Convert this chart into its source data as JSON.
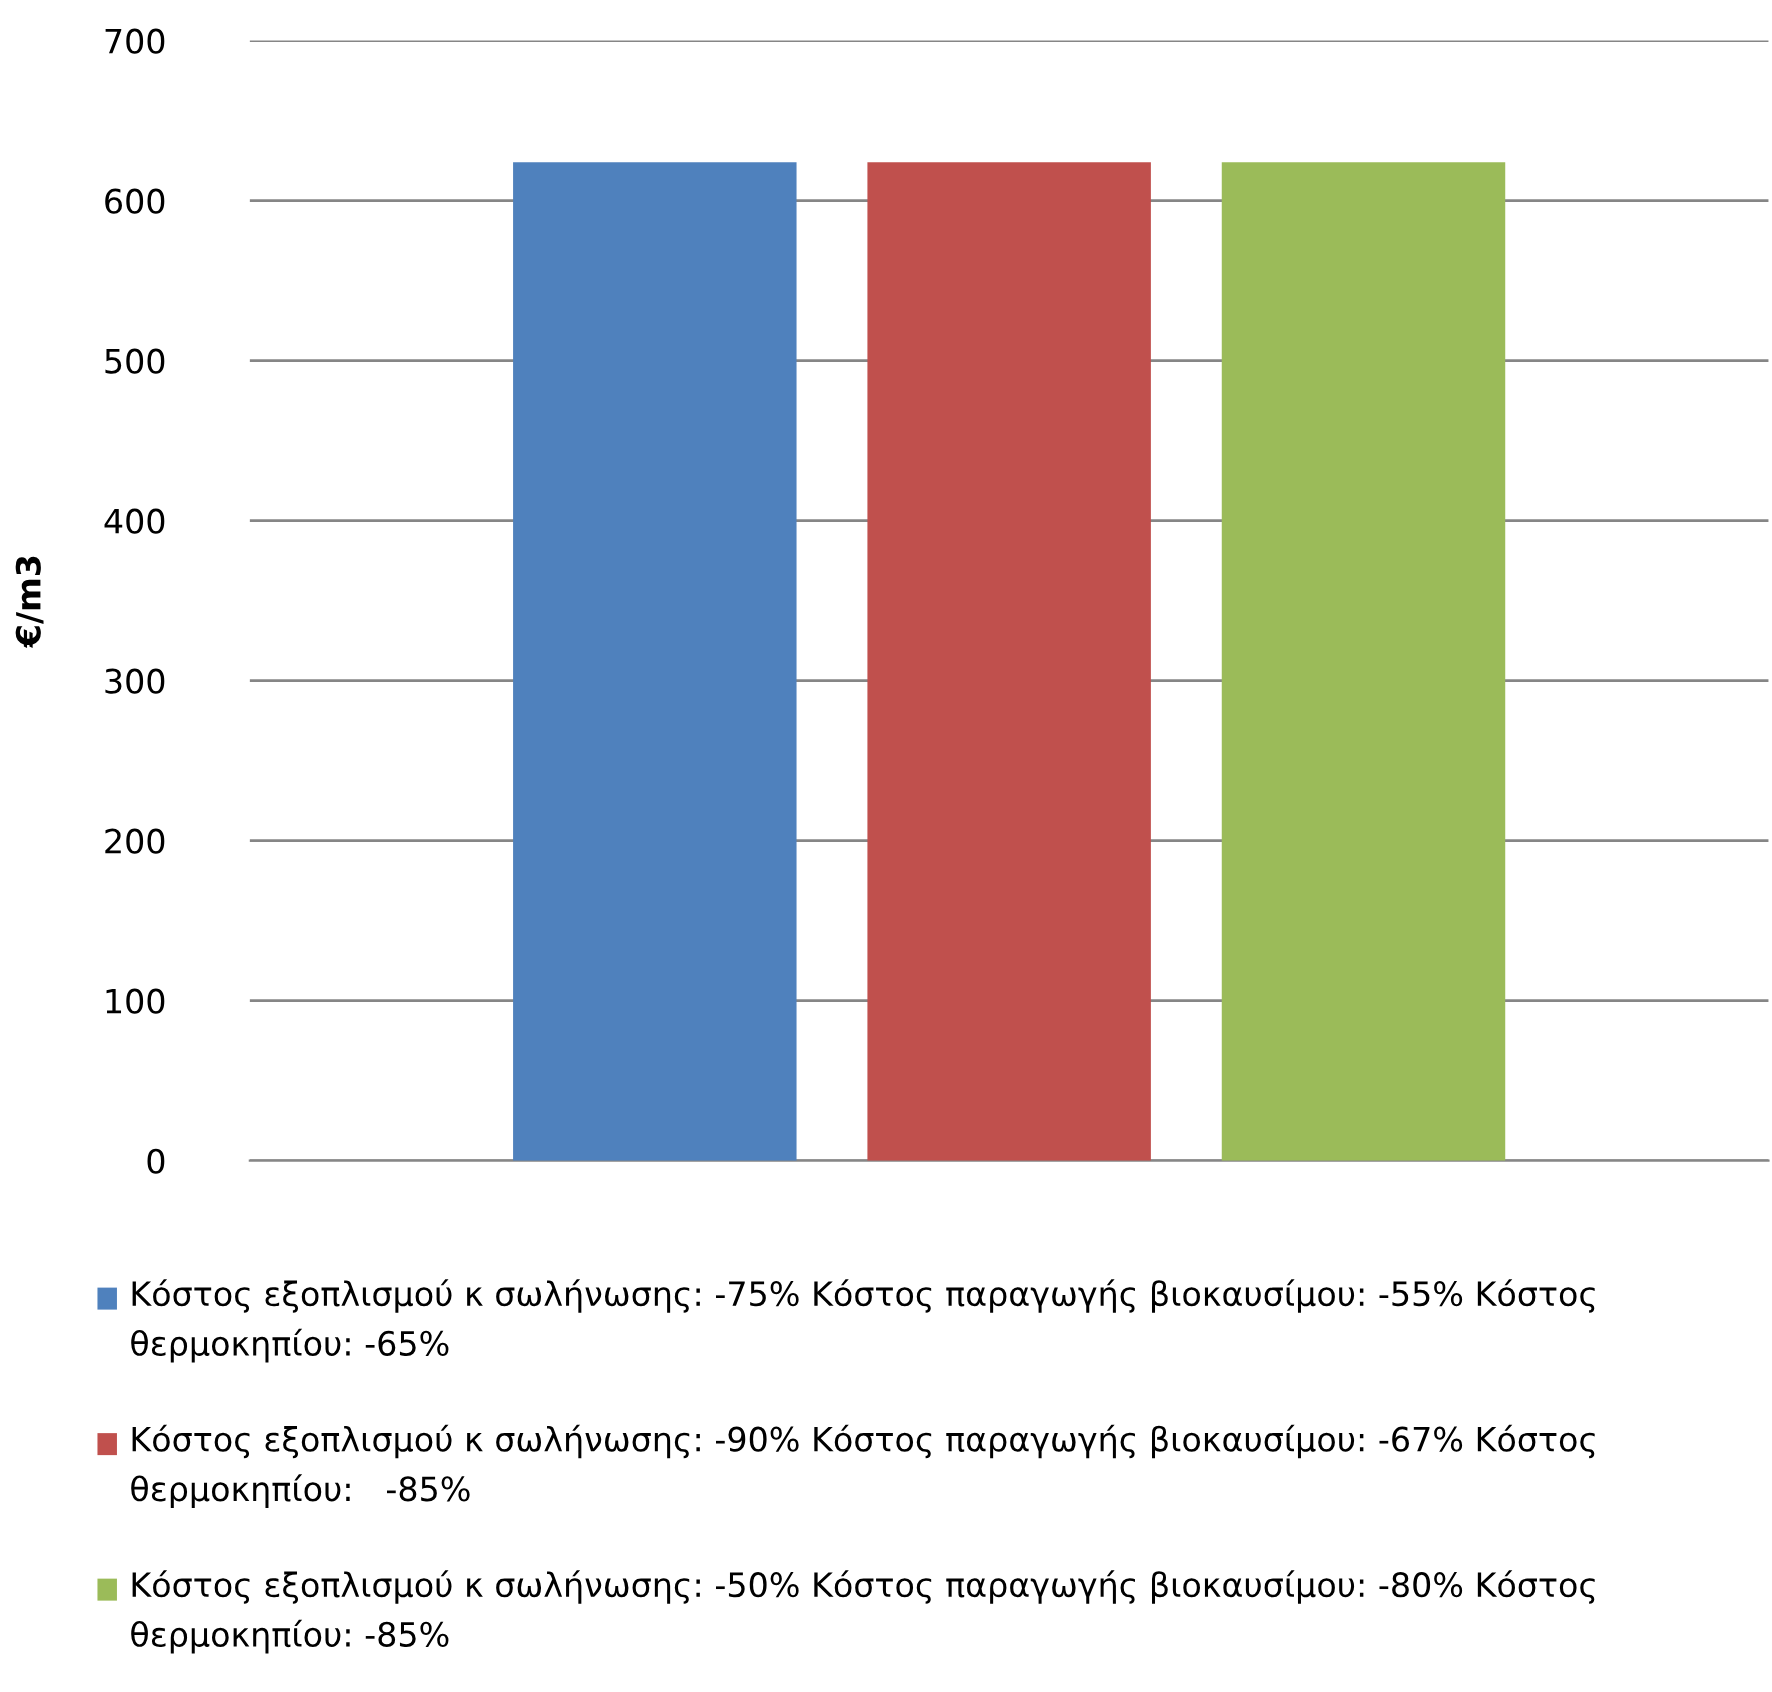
{
  "chart_data": {
    "type": "bar",
    "ylabel": "€/m3",
    "categories": [
      null
    ],
    "series": [
      {
        "name": "Κόστος εξοπλισμού κ σωλήνωσης: -75% Κόστος παραγωγής βιοκαυσίμου: -55% Κόστος θερμοκηπίου: -65%",
        "color": "#4f81bd",
        "values": [
          624
        ]
      },
      {
        "name": "Κόστος εξοπλισμού κ σωλήνωσης: -90% Κόστος παραγωγής βιοκαυσίμου: -67% Κόστος θερμοκηπίου:   -85%",
        "color": "#c0504d",
        "values": [
          624
        ]
      },
      {
        "name": "Κόστος εξοπλισμού κ σωλήνωσης: -50% Κόστος παραγωγής βιοκαυσίμου: -80% Κόστος θερμοκηπίου: -85%",
        "color": "#9bbb59",
        "values": [
          624
        ]
      }
    ],
    "ylim": [
      0,
      700
    ],
    "yticks": [
      0,
      100,
      200,
      300,
      400,
      500,
      600,
      700
    ],
    "grid": "y",
    "legend": "bottom"
  }
}
